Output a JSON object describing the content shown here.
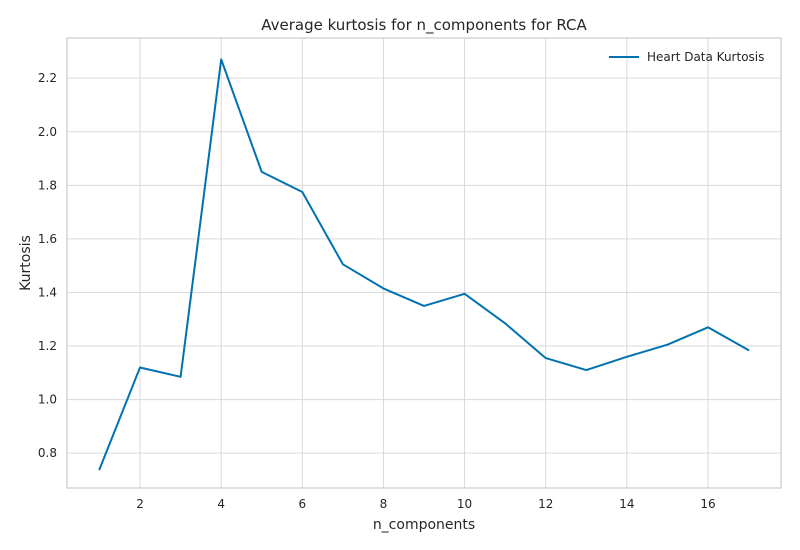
{
  "chart_data": {
    "type": "line",
    "title": "Average kurtosis for n_components for RCA",
    "xlabel": "n_components",
    "ylabel": "Kurtosis",
    "xlim": [
      0.2,
      17.8
    ],
    "ylim": [
      0.67,
      2.35
    ],
    "x_ticks": [
      2,
      4,
      6,
      8,
      10,
      12,
      14,
      16
    ],
    "y_ticks": [
      0.8,
      1.0,
      1.2,
      1.4,
      1.6,
      1.8,
      2.0,
      2.2
    ],
    "x_tick_labels": [
      "2",
      "4",
      "6",
      "8",
      "10",
      "12",
      "14",
      "16"
    ],
    "y_tick_labels": [
      "0.8",
      "1.0",
      "1.2",
      "1.4",
      "1.6",
      "1.8",
      "2.0",
      "2.2"
    ],
    "grid": true,
    "legend_position": "top-right",
    "series": [
      {
        "name": "Heart Data Kurtosis",
        "color": "#0072b2",
        "x": [
          1,
          2,
          3,
          4,
          5,
          6,
          7,
          8,
          9,
          10,
          11,
          12,
          13,
          14,
          15,
          16,
          17
        ],
        "y": [
          0.74,
          1.12,
          1.085,
          2.27,
          1.85,
          1.775,
          1.505,
          1.415,
          1.35,
          1.395,
          1.285,
          1.155,
          1.11,
          1.16,
          1.205,
          1.27,
          1.185
        ]
      }
    ]
  }
}
